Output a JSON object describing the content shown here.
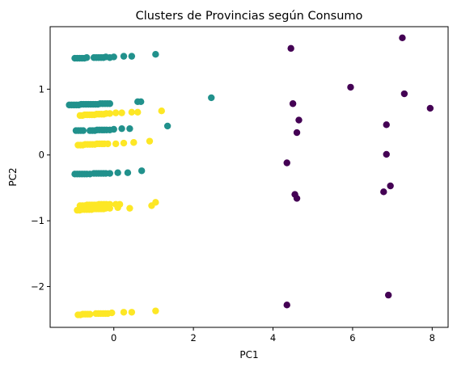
{
  "chart_data": {
    "type": "scatter",
    "title": "Clusters de Provincias según Consumo",
    "xlabel": "PC1",
    "ylabel": "PC2",
    "xlim": [
      -1.6,
      8.4
    ],
    "ylim": [
      -2.62,
      1.95
    ],
    "xticks": [
      0,
      2,
      4,
      6,
      8
    ],
    "xtick_labels": [
      "0",
      "2",
      "4",
      "6",
      "8"
    ],
    "yticks": [
      -2,
      -1,
      0,
      1
    ],
    "ytick_labels": [
      "−2",
      "−1",
      "0",
      "1"
    ],
    "grid": false,
    "legend": "none",
    "series": [
      {
        "color": "#440154",
        "points": [
          [
            4.45,
            1.62
          ],
          [
            7.25,
            1.78
          ],
          [
            5.95,
            1.03
          ],
          [
            7.3,
            0.93
          ],
          [
            7.95,
            0.71
          ],
          [
            4.5,
            0.78
          ],
          [
            4.65,
            0.53
          ],
          [
            6.85,
            0.46
          ],
          [
            4.6,
            0.34
          ],
          [
            6.85,
            0.01
          ],
          [
            4.35,
            -0.12
          ],
          [
            4.55,
            -0.6
          ],
          [
            4.6,
            -0.66
          ],
          [
            6.95,
            -0.47
          ],
          [
            6.78,
            -0.56
          ],
          [
            4.35,
            -2.28
          ],
          [
            6.9,
            -2.13
          ]
        ]
      },
      {
        "color": "#21918c",
        "points": [
          [
            -0.98,
            1.47
          ],
          [
            -0.92,
            1.47
          ],
          [
            -0.86,
            1.47
          ],
          [
            -0.8,
            1.47
          ],
          [
            -0.74,
            1.47
          ],
          [
            -0.68,
            1.48
          ],
          [
            -0.5,
            1.48
          ],
          [
            -0.44,
            1.48
          ],
          [
            -0.38,
            1.48
          ],
          [
            -0.32,
            1.48
          ],
          [
            -0.26,
            1.48
          ],
          [
            -0.2,
            1.49
          ],
          [
            -0.1,
            1.48
          ],
          [
            0.0,
            1.49
          ],
          [
            0.25,
            1.5
          ],
          [
            0.45,
            1.5
          ],
          [
            1.05,
            1.53
          ],
          [
            -1.12,
            0.76
          ],
          [
            -1.06,
            0.76
          ],
          [
            -1.0,
            0.76
          ],
          [
            -0.94,
            0.76
          ],
          [
            -0.88,
            0.76
          ],
          [
            -0.82,
            0.77
          ],
          [
            -0.76,
            0.77
          ],
          [
            -0.7,
            0.77
          ],
          [
            -0.64,
            0.77
          ],
          [
            -0.58,
            0.77
          ],
          [
            -0.52,
            0.77
          ],
          [
            -0.46,
            0.77
          ],
          [
            -0.4,
            0.77
          ],
          [
            -0.34,
            0.78
          ],
          [
            -0.28,
            0.78
          ],
          [
            -0.22,
            0.78
          ],
          [
            -0.16,
            0.78
          ],
          [
            -0.1,
            0.78
          ],
          [
            0.6,
            0.81
          ],
          [
            0.68,
            0.81
          ],
          [
            2.45,
            0.87
          ],
          [
            -0.95,
            0.37
          ],
          [
            -0.89,
            0.37
          ],
          [
            -0.83,
            0.37
          ],
          [
            -0.77,
            0.37
          ],
          [
            -0.6,
            0.37
          ],
          [
            -0.54,
            0.37
          ],
          [
            -0.48,
            0.37
          ],
          [
            -0.42,
            0.38
          ],
          [
            -0.36,
            0.38
          ],
          [
            -0.3,
            0.38
          ],
          [
            -0.24,
            0.38
          ],
          [
            -0.18,
            0.38
          ],
          [
            -0.1,
            0.38
          ],
          [
            0.0,
            0.39
          ],
          [
            0.2,
            0.4
          ],
          [
            0.4,
            0.4
          ],
          [
            1.35,
            0.44
          ],
          [
            -0.98,
            -0.29
          ],
          [
            -0.92,
            -0.29
          ],
          [
            -0.86,
            -0.29
          ],
          [
            -0.8,
            -0.29
          ],
          [
            -0.74,
            -0.29
          ],
          [
            -0.68,
            -0.29
          ],
          [
            -0.6,
            -0.29
          ],
          [
            -0.5,
            -0.28
          ],
          [
            -0.44,
            -0.28
          ],
          [
            -0.38,
            -0.28
          ],
          [
            -0.32,
            -0.28
          ],
          [
            -0.26,
            -0.28
          ],
          [
            -0.2,
            -0.28
          ],
          [
            -0.1,
            -0.28
          ],
          [
            0.1,
            -0.27
          ],
          [
            0.35,
            -0.27
          ],
          [
            0.7,
            -0.24
          ]
        ]
      },
      {
        "color": "#fde725",
        "points": [
          [
            -0.85,
            0.6
          ],
          [
            -0.79,
            0.6
          ],
          [
            -0.73,
            0.61
          ],
          [
            -0.67,
            0.61
          ],
          [
            -0.61,
            0.61
          ],
          [
            -0.55,
            0.61
          ],
          [
            -0.49,
            0.61
          ],
          [
            -0.43,
            0.62
          ],
          [
            -0.37,
            0.62
          ],
          [
            -0.31,
            0.62
          ],
          [
            -0.25,
            0.62
          ],
          [
            -0.19,
            0.63
          ],
          [
            -0.1,
            0.63
          ],
          [
            0.05,
            0.64
          ],
          [
            0.2,
            0.64
          ],
          [
            0.45,
            0.65
          ],
          [
            0.6,
            0.65
          ],
          [
            1.2,
            0.67
          ],
          [
            -0.9,
            0.15
          ],
          [
            -0.84,
            0.15
          ],
          [
            -0.78,
            0.15
          ],
          [
            -0.72,
            0.16
          ],
          [
            -0.66,
            0.16
          ],
          [
            -0.6,
            0.16
          ],
          [
            -0.54,
            0.16
          ],
          [
            -0.48,
            0.16
          ],
          [
            -0.42,
            0.17
          ],
          [
            -0.36,
            0.17
          ],
          [
            -0.3,
            0.17
          ],
          [
            -0.24,
            0.17
          ],
          [
            -0.15,
            0.17
          ],
          [
            0.05,
            0.17
          ],
          [
            0.25,
            0.18
          ],
          [
            0.5,
            0.19
          ],
          [
            0.9,
            0.21
          ],
          [
            -0.85,
            -0.77
          ],
          [
            -0.79,
            -0.77
          ],
          [
            -0.73,
            -0.77
          ],
          [
            -0.67,
            -0.76
          ],
          [
            -0.61,
            -0.76
          ],
          [
            -0.55,
            -0.76
          ],
          [
            -0.49,
            -0.76
          ],
          [
            -0.43,
            -0.76
          ],
          [
            -0.37,
            -0.75
          ],
          [
            -0.31,
            -0.75
          ],
          [
            -0.25,
            -0.75
          ],
          [
            -0.19,
            -0.75
          ],
          [
            -0.1,
            -0.75
          ],
          [
            0.05,
            -0.75
          ],
          [
            0.15,
            -0.75
          ],
          [
            -0.92,
            -0.84
          ],
          [
            -0.86,
            -0.84
          ],
          [
            -0.8,
            -0.83
          ],
          [
            -0.74,
            -0.83
          ],
          [
            -0.68,
            -0.83
          ],
          [
            -0.62,
            -0.83
          ],
          [
            -0.56,
            -0.83
          ],
          [
            -0.5,
            -0.82
          ],
          [
            -0.44,
            -0.82
          ],
          [
            -0.38,
            -0.82
          ],
          [
            -0.32,
            -0.82
          ],
          [
            -0.26,
            -0.82
          ],
          [
            -0.2,
            -0.81
          ],
          [
            -0.1,
            -0.81
          ],
          [
            0.1,
            -0.8
          ],
          [
            0.4,
            -0.81
          ],
          [
            0.95,
            -0.77
          ],
          [
            1.05,
            -0.72
          ],
          [
            -0.9,
            -2.43
          ],
          [
            -0.84,
            -2.43
          ],
          [
            -0.78,
            -2.42
          ],
          [
            -0.72,
            -2.42
          ],
          [
            -0.66,
            -2.42
          ],
          [
            -0.6,
            -2.42
          ],
          [
            -0.45,
            -2.41
          ],
          [
            -0.39,
            -2.41
          ],
          [
            -0.33,
            -2.41
          ],
          [
            -0.27,
            -2.41
          ],
          [
            -0.21,
            -2.41
          ],
          [
            -0.15,
            -2.41
          ],
          [
            -0.05,
            -2.4
          ],
          [
            0.25,
            -2.39
          ],
          [
            0.45,
            -2.39
          ],
          [
            1.05,
            -2.37
          ]
        ]
      }
    ]
  }
}
